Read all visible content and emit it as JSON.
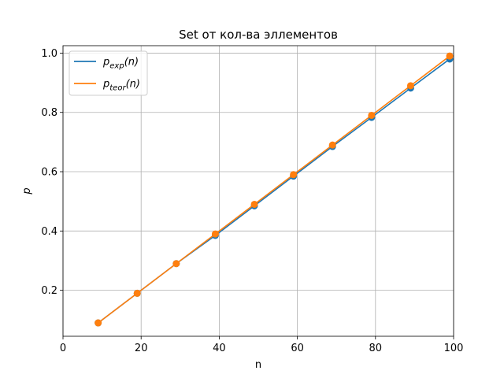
{
  "chart_data": {
    "type": "line",
    "title": "Set от кол-ва эллементов",
    "xlabel": "n",
    "ylabel": "p",
    "xlim": [
      0,
      100
    ],
    "ylim": [
      0.045,
      1.025
    ],
    "xticks": [
      0,
      20,
      40,
      60,
      80,
      100
    ],
    "yticks": [
      0.2,
      0.4,
      0.6,
      0.8,
      1.0
    ],
    "xtick_labels": [
      "0",
      "20",
      "40",
      "60",
      "80",
      "100"
    ],
    "ytick_labels": [
      "0.2",
      "0.4",
      "0.6",
      "0.8",
      "1.0"
    ],
    "grid": true,
    "legend": "top-left",
    "x": [
      9,
      19,
      29,
      39,
      49,
      59,
      69,
      79,
      89,
      99
    ],
    "series": [
      {
        "name": "p_exp(n)",
        "name_base": "p",
        "name_sub": "exp",
        "name_tail": "(n)",
        "color": "#1f77b4",
        "markers": true,
        "values": [
          0.09,
          0.19,
          0.29,
          0.385,
          0.485,
          0.585,
          0.685,
          0.783,
          0.882,
          0.98
        ]
      },
      {
        "name": "p_teor(n)",
        "name_base": "p",
        "name_sub": "teor",
        "name_tail": "(n)",
        "color": "#ff7f0e",
        "markers": true,
        "values": [
          0.09,
          0.19,
          0.29,
          0.39,
          0.49,
          0.59,
          0.69,
          0.79,
          0.89,
          0.99
        ]
      }
    ]
  }
}
